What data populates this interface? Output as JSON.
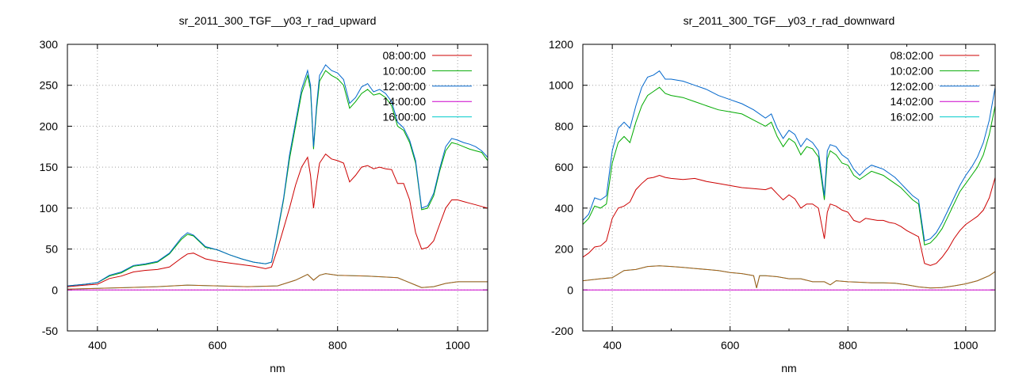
{
  "chart_data": [
    {
      "type": "line",
      "title": "sr_2011_300_TGF__y03_r_rad_upward",
      "xlabel": "nm",
      "ylabel": "",
      "xlim": [
        350,
        1050
      ],
      "ylim": [
        -50,
        300
      ],
      "xticks": [
        400,
        600,
        800,
        1000
      ],
      "yticks": [
        -50,
        0,
        50,
        100,
        150,
        200,
        250,
        300
      ],
      "grid": true,
      "legend_position": "top-right",
      "series": [
        {
          "name": "08:00:00",
          "color": "#cc0000",
          "x": [
            350,
            380,
            400,
            420,
            440,
            460,
            480,
            500,
            520,
            540,
            550,
            560,
            580,
            600,
            620,
            640,
            660,
            680,
            690,
            700,
            710,
            720,
            730,
            740,
            750,
            755,
            760,
            765,
            770,
            780,
            790,
            800,
            810,
            820,
            830,
            840,
            850,
            860,
            870,
            880,
            890,
            900,
            910,
            920,
            930,
            940,
            950,
            960,
            970,
            980,
            990,
            1000,
            1010,
            1020,
            1030,
            1040,
            1050
          ],
          "y": [
            4,
            6,
            7,
            14,
            17,
            22,
            24,
            25,
            28,
            39,
            44,
            45,
            38,
            35,
            33,
            31,
            29,
            26,
            28,
            50,
            75,
            100,
            128,
            150,
            162,
            140,
            100,
            130,
            155,
            166,
            160,
            158,
            155,
            132,
            140,
            150,
            152,
            148,
            150,
            148,
            147,
            130,
            130,
            110,
            70,
            50,
            52,
            60,
            80,
            100,
            110,
            110,
            108,
            106,
            104,
            102,
            100
          ]
        },
        {
          "name": "10:00:00",
          "color": "#00aa00",
          "x": [
            350,
            380,
            400,
            420,
            440,
            460,
            480,
            500,
            520,
            540,
            550,
            560,
            580,
            600,
            620,
            640,
            660,
            680,
            690,
            700,
            710,
            720,
            730,
            740,
            750,
            755,
            760,
            765,
            770,
            780,
            790,
            800,
            810,
            820,
            830,
            840,
            850,
            860,
            870,
            880,
            890,
            900,
            910,
            920,
            930,
            940,
            950,
            960,
            970,
            980,
            990,
            1000,
            1010,
            1020,
            1030,
            1040,
            1050
          ],
          "y": [
            5,
            7,
            9,
            17,
            21,
            29,
            31,
            34,
            44,
            62,
            68,
            66,
            52,
            49,
            43,
            38,
            34,
            32,
            34,
            70,
            110,
            160,
            200,
            240,
            262,
            245,
            172,
            220,
            255,
            268,
            262,
            258,
            250,
            222,
            230,
            240,
            245,
            238,
            240,
            235,
            225,
            200,
            195,
            180,
            155,
            98,
            100,
            115,
            145,
            170,
            180,
            178,
            175,
            172,
            170,
            168,
            158
          ]
        },
        {
          "name": "12:00:00",
          "color": "#0066cc",
          "x": [
            350,
            380,
            400,
            420,
            440,
            460,
            480,
            500,
            520,
            540,
            550,
            560,
            580,
            600,
            620,
            640,
            660,
            680,
            690,
            700,
            710,
            720,
            730,
            740,
            750,
            755,
            760,
            765,
            770,
            780,
            790,
            800,
            810,
            820,
            830,
            840,
            850,
            860,
            870,
            880,
            890,
            900,
            910,
            920,
            930,
            940,
            950,
            960,
            970,
            980,
            990,
            1000,
            1010,
            1020,
            1030,
            1040,
            1050
          ],
          "y": [
            5,
            7,
            9,
            18,
            22,
            30,
            32,
            35,
            45,
            64,
            70,
            67,
            53,
            49,
            43,
            38,
            34,
            32,
            34,
            72,
            112,
            165,
            205,
            245,
            268,
            250,
            175,
            225,
            262,
            275,
            268,
            265,
            257,
            228,
            235,
            248,
            252,
            242,
            245,
            240,
            230,
            205,
            198,
            183,
            158,
            100,
            103,
            118,
            148,
            175,
            185,
            183,
            180,
            178,
            175,
            170,
            162
          ]
        },
        {
          "name": "14:00:00",
          "color": "#cc00cc",
          "x": [
            350,
            1050
          ],
          "y": [
            0,
            0
          ]
        },
        {
          "name": "16:00:00",
          "color": "#00cccc",
          "x": [
            350,
            400,
            450,
            500,
            550,
            600,
            650,
            700,
            730,
            750,
            760,
            770,
            780,
            800,
            850,
            900,
            930,
            940,
            960,
            980,
            1000,
            1020,
            1050
          ],
          "y": [
            1,
            2,
            3,
            4,
            6,
            5,
            4,
            5,
            12,
            19,
            12,
            18,
            20,
            18,
            17,
            15,
            6,
            3,
            4,
            8,
            10,
            10,
            10
          ]
        }
      ],
      "extra_lines": [
        {
          "color": "#b05a10",
          "x": [
            350,
            400,
            450,
            500,
            550,
            600,
            650,
            700,
            730,
            750,
            760,
            770,
            780,
            800,
            850,
            900,
            930,
            940,
            960,
            980,
            1000,
            1020,
            1050
          ],
          "y": [
            1,
            2,
            3,
            4,
            6,
            5,
            4,
            5,
            12,
            19,
            12,
            18,
            20,
            18,
            17,
            15,
            6,
            3,
            4,
            8,
            10,
            10,
            10
          ]
        }
      ]
    },
    {
      "type": "line",
      "title": "sr_2011_300_TGF__y03_r_rad_downward",
      "xlabel": "nm",
      "ylabel": "",
      "xlim": [
        350,
        1050
      ],
      "ylim": [
        -200,
        1200
      ],
      "xticks": [
        400,
        600,
        800,
        1000
      ],
      "yticks": [
        -200,
        0,
        200,
        400,
        600,
        800,
        1000,
        1200
      ],
      "grid": true,
      "legend_position": "top-right",
      "series": [
        {
          "name": "08:02:00",
          "color": "#cc0000",
          "x": [
            350,
            360,
            370,
            380,
            390,
            400,
            410,
            420,
            430,
            440,
            450,
            460,
            470,
            480,
            490,
            500,
            520,
            540,
            560,
            580,
            600,
            620,
            640,
            660,
            670,
            680,
            690,
            700,
            710,
            720,
            730,
            740,
            750,
            760,
            765,
            770,
            780,
            790,
            800,
            810,
            820,
            830,
            840,
            850,
            860,
            870,
            880,
            890,
            900,
            910,
            920,
            930,
            940,
            950,
            960,
            970,
            980,
            990,
            1000,
            1010,
            1020,
            1030,
            1040,
            1050
          ],
          "y": [
            160,
            180,
            210,
            215,
            240,
            350,
            400,
            410,
            430,
            490,
            520,
            545,
            550,
            560,
            550,
            545,
            540,
            545,
            530,
            520,
            510,
            500,
            495,
            490,
            500,
            470,
            440,
            465,
            445,
            400,
            420,
            420,
            400,
            250,
            380,
            420,
            410,
            390,
            380,
            340,
            330,
            350,
            345,
            340,
            340,
            330,
            325,
            310,
            290,
            275,
            260,
            130,
            120,
            130,
            160,
            200,
            250,
            290,
            320,
            340,
            360,
            390,
            450,
            550
          ]
        },
        {
          "name": "10:02:00",
          "color": "#00aa00",
          "x": [
            350,
            360,
            370,
            380,
            390,
            400,
            410,
            420,
            430,
            440,
            450,
            460,
            470,
            480,
            490,
            500,
            520,
            540,
            560,
            580,
            600,
            620,
            640,
            660,
            670,
            680,
            690,
            700,
            710,
            720,
            730,
            740,
            750,
            760,
            765,
            770,
            780,
            790,
            800,
            810,
            820,
            830,
            840,
            850,
            860,
            870,
            880,
            890,
            900,
            910,
            920,
            930,
            940,
            950,
            960,
            970,
            980,
            990,
            1000,
            1010,
            1020,
            1030,
            1040,
            1050
          ],
          "y": [
            320,
            350,
            410,
            400,
            420,
            620,
            720,
            750,
            720,
            820,
            900,
            950,
            970,
            990,
            960,
            950,
            940,
            920,
            900,
            880,
            870,
            860,
            830,
            800,
            820,
            750,
            700,
            740,
            720,
            660,
            700,
            690,
            650,
            440,
            640,
            680,
            660,
            620,
            610,
            560,
            540,
            560,
            580,
            570,
            560,
            540,
            520,
            500,
            470,
            440,
            420,
            220,
            230,
            260,
            300,
            360,
            420,
            480,
            520,
            560,
            600,
            660,
            760,
            900
          ]
        },
        {
          "name": "12:02:00",
          "color": "#0066cc",
          "x": [
            350,
            360,
            370,
            380,
            390,
            400,
            410,
            420,
            430,
            440,
            450,
            460,
            470,
            480,
            490,
            500,
            520,
            540,
            560,
            580,
            600,
            620,
            640,
            660,
            670,
            680,
            690,
            700,
            710,
            720,
            730,
            740,
            750,
            760,
            765,
            770,
            780,
            790,
            800,
            810,
            820,
            830,
            840,
            850,
            860,
            870,
            880,
            890,
            900,
            910,
            920,
            930,
            940,
            950,
            960,
            970,
            980,
            990,
            1000,
            1010,
            1020,
            1030,
            1040,
            1050
          ],
          "y": [
            340,
            370,
            450,
            440,
            460,
            680,
            790,
            820,
            790,
            900,
            990,
            1040,
            1050,
            1070,
            1030,
            1030,
            1020,
            1000,
            980,
            950,
            930,
            910,
            880,
            840,
            860,
            790,
            740,
            780,
            760,
            700,
            740,
            720,
            680,
            460,
            680,
            710,
            700,
            660,
            640,
            590,
            560,
            590,
            610,
            600,
            590,
            570,
            550,
            520,
            490,
            460,
            440,
            240,
            250,
            280,
            330,
            390,
            450,
            510,
            560,
            600,
            650,
            720,
            830,
            990
          ]
        },
        {
          "name": "14:02:00",
          "color": "#cc00cc",
          "x": [
            350,
            1050
          ],
          "y": [
            0,
            0
          ]
        },
        {
          "name": "16:02:00",
          "color": "#00cccc",
          "x": [
            350,
            380,
            400,
            420,
            440,
            460,
            480,
            500,
            520,
            540,
            560,
            580,
            600,
            620,
            630,
            640,
            645,
            650,
            660,
            680,
            700,
            720,
            740,
            760,
            770,
            780,
            800,
            820,
            840,
            860,
            880,
            900,
            920,
            940,
            960,
            980,
            1000,
            1020,
            1040,
            1050
          ],
          "y": [
            45,
            55,
            60,
            95,
            100,
            115,
            118,
            115,
            110,
            105,
            100,
            95,
            85,
            80,
            75,
            70,
            10,
            70,
            70,
            65,
            55,
            55,
            40,
            40,
            25,
            45,
            40,
            38,
            35,
            35,
            33,
            25,
            15,
            10,
            12,
            20,
            30,
            45,
            70,
            90
          ]
        }
      ],
      "extra_lines": [
        {
          "color": "#b05a10",
          "x": [
            350,
            380,
            400,
            420,
            440,
            460,
            480,
            500,
            520,
            540,
            560,
            580,
            600,
            620,
            630,
            640,
            645,
            650,
            660,
            680,
            700,
            720,
            740,
            760,
            770,
            780,
            800,
            820,
            840,
            860,
            880,
            900,
            920,
            940,
            960,
            980,
            1000,
            1020,
            1040,
            1050
          ],
          "y": [
            45,
            55,
            60,
            95,
            100,
            115,
            118,
            115,
            110,
            105,
            100,
            95,
            85,
            80,
            75,
            70,
            10,
            70,
            70,
            65,
            55,
            55,
            40,
            40,
            25,
            45,
            40,
            38,
            35,
            35,
            33,
            25,
            15,
            10,
            12,
            20,
            30,
            45,
            70,
            90
          ]
        }
      ]
    }
  ]
}
